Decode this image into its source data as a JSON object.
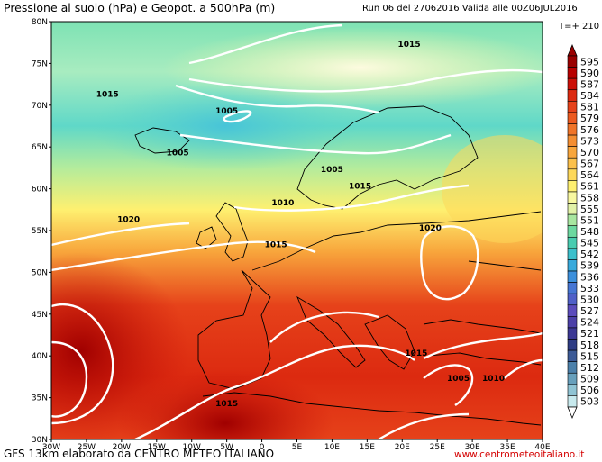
{
  "header": {
    "title": "Pressione al suolo (hPa) e Geopot. a 500hPa (m)",
    "run": "Run 06 del 27062016  Valida alle 00Z06JUL2016",
    "timestep": "T=+ 210"
  },
  "footer": {
    "left": "GFS 13km elaborato da CENTRO METEO ITALIANO",
    "right": "www.centrometeoitaliano.it"
  },
  "map": {
    "lat_labels": [
      "80N",
      "75N",
      "70N",
      "65N",
      "60N",
      "55N",
      "50N",
      "45N",
      "40N",
      "35N",
      "30N"
    ],
    "lon_labels": [
      "30W",
      "25W",
      "20W",
      "15W",
      "10W",
      "5W",
      "0",
      "5E",
      "10E",
      "15E",
      "20E",
      "25E",
      "30E",
      "35E",
      "40E"
    ],
    "isobars": [
      {
        "label": "1015",
        "lon": -22,
        "lat": 71
      },
      {
        "label": "1015",
        "lon": 21,
        "lat": 77
      },
      {
        "label": "1005",
        "lon": -5,
        "lat": 69
      },
      {
        "label": "1005",
        "lon": -12,
        "lat": 64
      },
      {
        "label": "1005",
        "lon": 10,
        "lat": 62
      },
      {
        "label": "1015",
        "lon": 14,
        "lat": 60
      },
      {
        "label": "1010",
        "lon": 3,
        "lat": 58
      },
      {
        "label": "1020",
        "lon": -19,
        "lat": 56
      },
      {
        "label": "1015",
        "lon": 2,
        "lat": 53
      },
      {
        "label": "1020",
        "lon": 24,
        "lat": 55
      },
      {
        "label": "1015",
        "lon": 22,
        "lat": 40
      },
      {
        "label": "1005",
        "lon": 28,
        "lat": 37
      },
      {
        "label": "1010",
        "lon": 33,
        "lat": 37
      },
      {
        "label": "1015",
        "lon": -5,
        "lat": 34
      }
    ]
  },
  "legend": {
    "values": [
      "595",
      "590",
      "587",
      "584",
      "581",
      "579",
      "576",
      "573",
      "570",
      "567",
      "564",
      "561",
      "558",
      "555",
      "551",
      "548",
      "545",
      "542",
      "539",
      "536",
      "533",
      "530",
      "527",
      "524",
      "521",
      "518",
      "515",
      "512",
      "509",
      "506",
      "503"
    ],
    "colors": [
      "#9a0000",
      "#b80000",
      "#cc1008",
      "#dc2a10",
      "#e6421a",
      "#ec5a20",
      "#f07428",
      "#f48e32",
      "#f8a63c",
      "#fbc04a",
      "#fdd85a",
      "#fef070",
      "#f8f8a0",
      "#e2f2a8",
      "#a8e6a0",
      "#6cd8a0",
      "#48ccb0",
      "#3cc0cc",
      "#38aadc",
      "#3c90dc",
      "#4676d4",
      "#5060c8",
      "#5c4cbc",
      "#4c40a8",
      "#3c3894",
      "#2e3c84",
      "#3c5a96",
      "#4c80aa",
      "#68a0bc",
      "#90c4d4",
      "#c8eaee"
    ]
  }
}
